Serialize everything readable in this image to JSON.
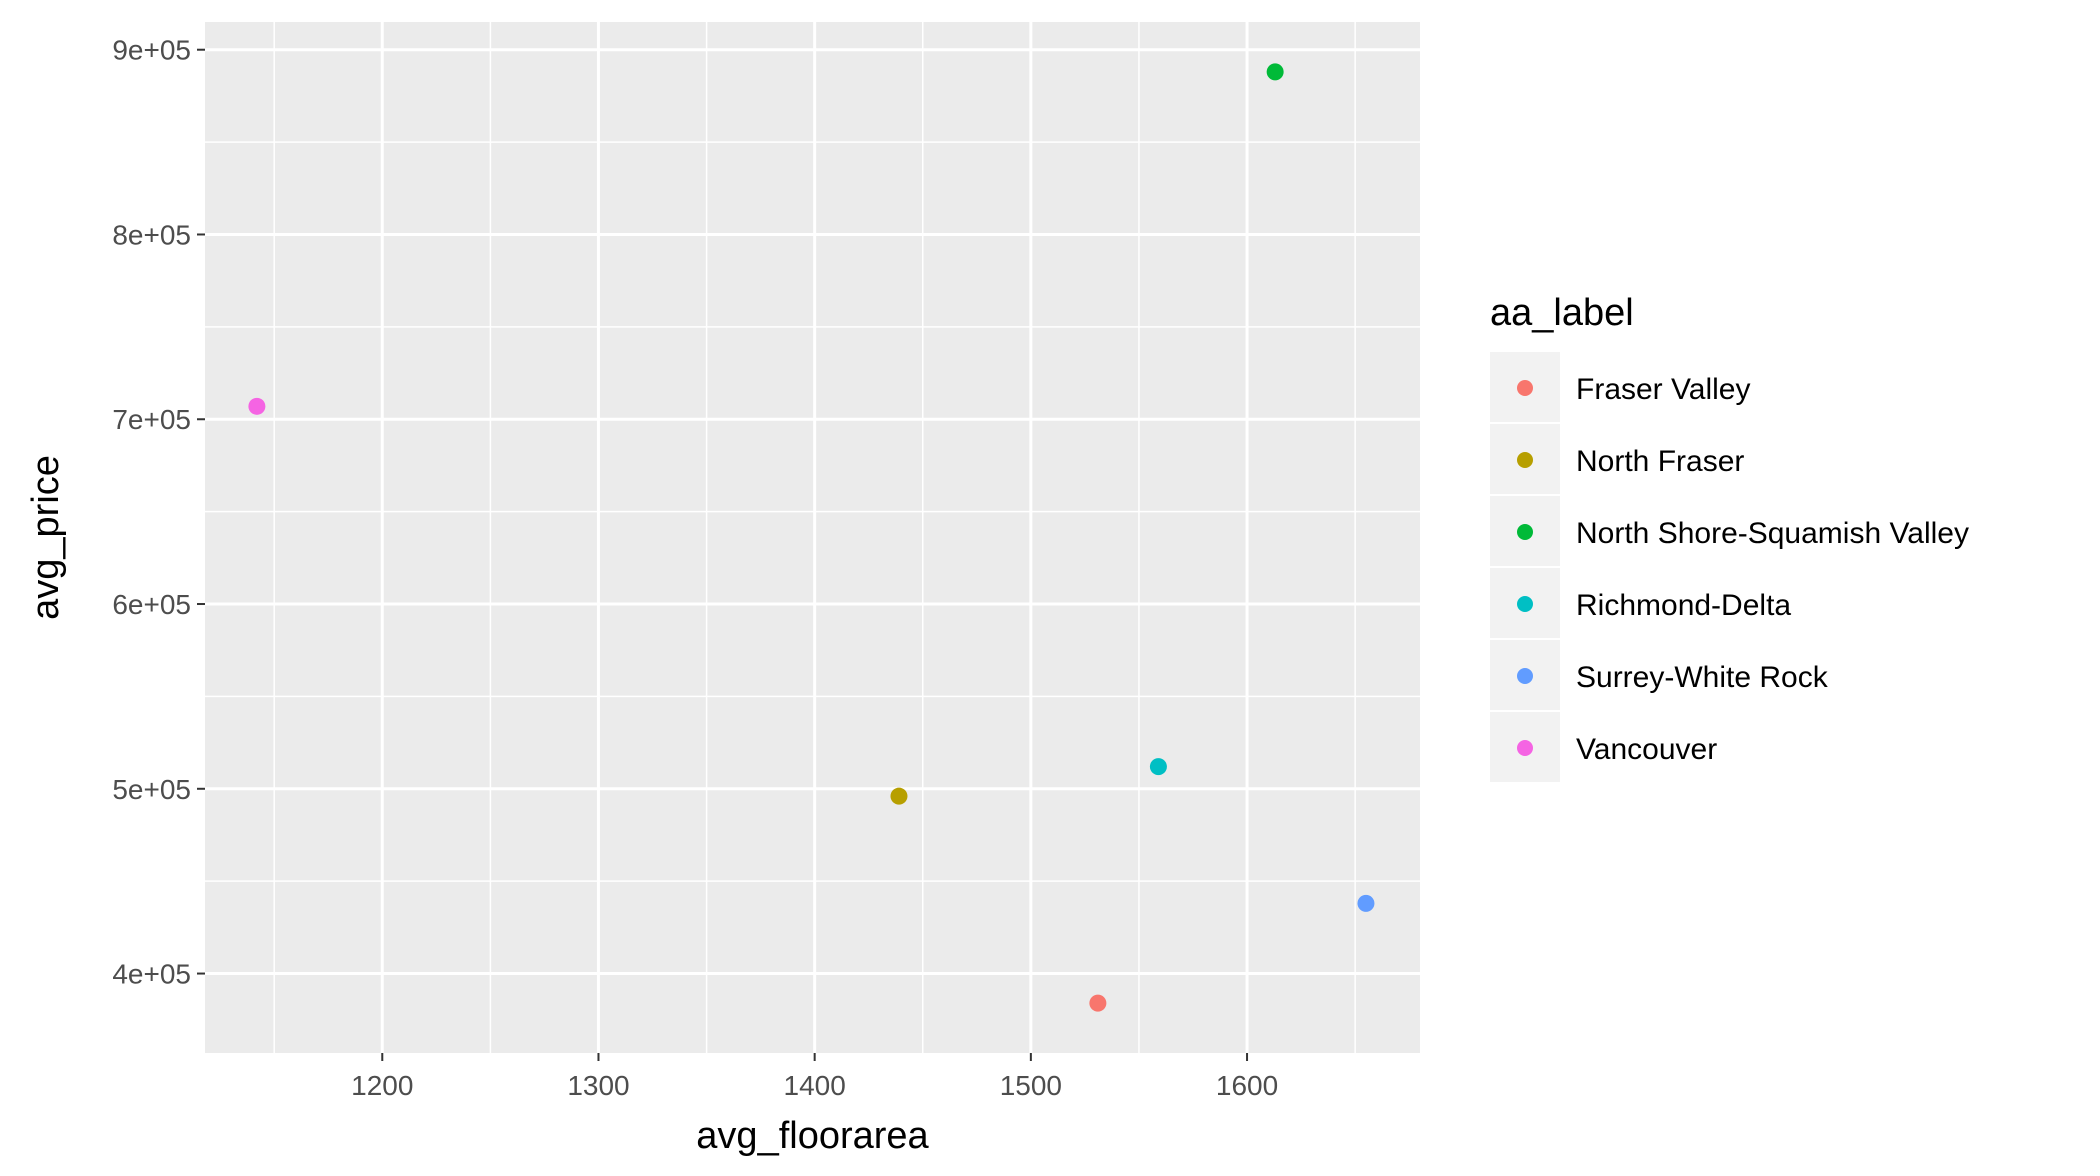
{
  "chart_data": {
    "type": "scatter",
    "xlabel": "avg_floorarea",
    "ylabel": "avg_price",
    "xlim": [
      1118,
      1680
    ],
    "ylim": [
      357000,
      915000
    ],
    "x_ticks": [
      1200,
      1300,
      1400,
      1500,
      1600
    ],
    "x_tick_labels": [
      "1200",
      "1300",
      "1400",
      "1500",
      "1600"
    ],
    "y_ticks": [
      400000,
      500000,
      600000,
      700000,
      800000,
      900000
    ],
    "y_tick_labels": [
      "4e+05",
      "5e+05",
      "6e+05",
      "7e+05",
      "8e+05",
      "9e+05"
    ],
    "grid": true,
    "legend": {
      "title": "aa_label",
      "position": "right"
    },
    "series": [
      {
        "name": "Fraser Valley",
        "color": "#F8766D",
        "x": [
          1531
        ],
        "y": [
          384000
        ]
      },
      {
        "name": "North Fraser",
        "color": "#B79F00",
        "x": [
          1439
        ],
        "y": [
          496000
        ]
      },
      {
        "name": "North Shore-Squamish Valley",
        "color": "#00BA38",
        "x": [
          1613
        ],
        "y": [
          888000
        ]
      },
      {
        "name": "Richmond-Delta",
        "color": "#00BFC4",
        "x": [
          1559
        ],
        "y": [
          512000
        ]
      },
      {
        "name": "Surrey-White Rock",
        "color": "#619CFF",
        "x": [
          1655
        ],
        "y": [
          438000
        ]
      },
      {
        "name": "Vancouver",
        "color": "#F564E3",
        "x": [
          1142
        ],
        "y": [
          707000
        ]
      }
    ]
  }
}
